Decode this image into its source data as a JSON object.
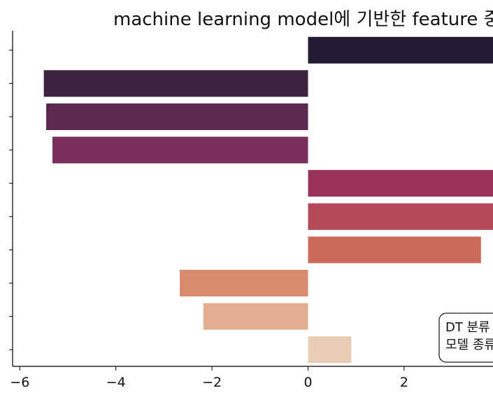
{
  "chart_data": {
    "type": "bar",
    "orientation": "horizontal",
    "title": "machine learning model에 기반한 feature 중",
    "categories": [
      "",
      "",
      "",
      "",
      "",
      "",
      "",
      "",
      "",
      ""
    ],
    "values": [
      4.2,
      -5.5,
      -5.45,
      -5.32,
      4.3,
      4.6,
      3.6,
      -2.67,
      -2.18,
      0.9
    ],
    "colors": [
      "#231a34",
      "#3d223f",
      "#5c2750",
      "#7a2f5b",
      "#9a3358",
      "#b44a57",
      "#cc6a5a",
      "#d88b6e",
      "#e2ad91",
      "#e8ccb3"
    ],
    "xlim": [
      -6.15,
      3.85
    ],
    "xticks": [
      -6,
      -4,
      -2,
      0,
      2
    ],
    "xtick_labels": [
      "−6",
      "−4",
      "−2",
      "0",
      "2"
    ],
    "legend_box": {
      "lines": [
        "DT 분류",
        "모델 종류"
      ],
      "placement": "bottom-right"
    },
    "grid": false
  }
}
